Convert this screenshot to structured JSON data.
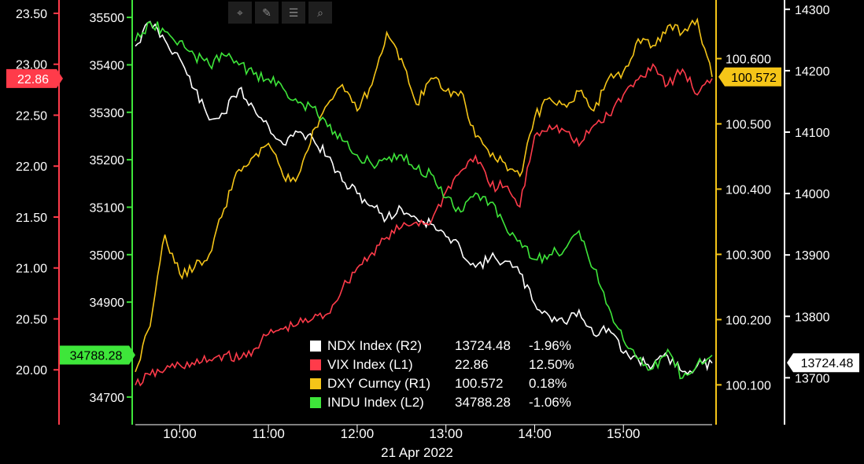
{
  "toolbar": {
    "icons": [
      "crosshair-icon",
      "pen-icon",
      "list-icon",
      "search-icon"
    ]
  },
  "legend": [
    {
      "name": "NDX Index (R2)",
      "last": "13724.48",
      "change": "-1.96%",
      "color": "#ffffff"
    },
    {
      "name": "VIX Index (L1)",
      "last": "22.86",
      "change": "12.50%",
      "color": "#ff3b4a"
    },
    {
      "name": "DXY Curncy (R1)",
      "last": "100.572",
      "change": "0.18%",
      "color": "#f5c518"
    },
    {
      "name": "INDU Index (L2)",
      "last": "34788.28",
      "change": "-1.06%",
      "color": "#3ee63a"
    }
  ],
  "chart_data": {
    "type": "line",
    "x_axis": {
      "ticks": [
        "10:00",
        "11:00",
        "12:00",
        "13:00",
        "14:00",
        "15:00"
      ],
      "date_label": "21 Apr 2022",
      "range": [
        "09:30",
        "16:00"
      ]
    },
    "axes": {
      "L1": {
        "color": "#ff3b4a",
        "range": [
          19.5,
          23.6
        ],
        "ticks": [
          "20.00",
          "20.50",
          "21.00",
          "21.50",
          "22.00",
          "22.50",
          "23.00",
          "23.50"
        ],
        "last_label": "22.86"
      },
      "L2": {
        "color": "#3ee63a",
        "range": [
          34650,
          35530
        ],
        "ticks": [
          "34700",
          "34800",
          "34900",
          "35000",
          "35100",
          "35200",
          "35300",
          "35400",
          "35500"
        ],
        "last_label": "34788.28"
      },
      "R1": {
        "color": "#f5c518",
        "range": [
          100.045,
          100.685
        ],
        "ticks": [
          "100.100",
          "100.200",
          "100.300",
          "100.400",
          "100.500",
          "100.600"
        ],
        "last_label": "100.572"
      },
      "R2": {
        "color": "#ffffff",
        "range": [
          13630,
          14310
        ],
        "ticks": [
          "13700",
          "13800",
          "13900",
          "14000",
          "14100",
          "14200",
          "14300"
        ],
        "last_label": "13724.48"
      }
    },
    "series": [
      {
        "name": "NDX Index (R2)",
        "axis": "R2",
        "color": "#ffffff",
        "x": [
          "09:30",
          "09:40",
          "09:50",
          "10:00",
          "10:10",
          "10:20",
          "10:30",
          "10:40",
          "10:50",
          "11:00",
          "11:10",
          "11:20",
          "11:30",
          "11:40",
          "11:50",
          "12:00",
          "12:10",
          "12:20",
          "12:30",
          "12:40",
          "12:50",
          "13:00",
          "13:10",
          "13:20",
          "13:30",
          "13:40",
          "13:50",
          "14:00",
          "14:10",
          "14:20",
          "14:30",
          "14:40",
          "14:50",
          "15:00",
          "15:10",
          "15:20",
          "15:30",
          "15:40",
          "15:50",
          "16:00"
        ],
        "values": [
          14240,
          14280,
          14250,
          14220,
          14170,
          14120,
          14130,
          14170,
          14140,
          14110,
          14080,
          14100,
          14090,
          14060,
          14020,
          14000,
          13980,
          13960,
          13975,
          13960,
          13950,
          13930,
          13910,
          13880,
          13895,
          13890,
          13870,
          13820,
          13800,
          13790,
          13810,
          13770,
          13780,
          13740,
          13730,
          13720,
          13735,
          13710,
          13720,
          13724
        ]
      },
      {
        "name": "VIX Index (L1)",
        "axis": "L1",
        "color": "#ff3b4a",
        "x": [
          "09:30",
          "09:40",
          "09:50",
          "10:00",
          "10:10",
          "10:20",
          "10:30",
          "10:40",
          "10:50",
          "11:00",
          "11:10",
          "11:20",
          "11:30",
          "11:40",
          "11:50",
          "12:00",
          "12:10",
          "12:20",
          "12:30",
          "12:40",
          "12:50",
          "13:00",
          "13:10",
          "13:20",
          "13:30",
          "13:40",
          "13:50",
          "14:00",
          "14:10",
          "14:20",
          "14:30",
          "14:40",
          "14:50",
          "15:00",
          "15:10",
          "15:20",
          "15:30",
          "15:40",
          "15:50",
          "16:00"
        ],
        "values": [
          19.85,
          19.95,
          20.0,
          20.05,
          20.05,
          20.1,
          20.15,
          20.1,
          20.2,
          20.35,
          20.4,
          20.45,
          20.5,
          20.55,
          20.8,
          21.0,
          21.15,
          21.3,
          21.4,
          21.45,
          21.45,
          21.75,
          21.95,
          22.1,
          21.8,
          21.8,
          21.6,
          22.3,
          22.4,
          22.35,
          22.2,
          22.4,
          22.5,
          22.7,
          22.85,
          23.0,
          22.8,
          22.95,
          22.7,
          22.86
        ]
      },
      {
        "name": "DXY Curncy (R1)",
        "axis": "R1",
        "color": "#f5c518",
        "x": [
          "09:30",
          "09:40",
          "09:50",
          "10:00",
          "10:10",
          "10:20",
          "10:30",
          "10:40",
          "10:50",
          "11:00",
          "11:10",
          "11:20",
          "11:30",
          "11:40",
          "11:50",
          "12:00",
          "12:10",
          "12:20",
          "12:30",
          "12:40",
          "12:50",
          "13:00",
          "13:10",
          "13:20",
          "13:30",
          "13:40",
          "13:50",
          "14:00",
          "14:10",
          "14:20",
          "14:30",
          "14:40",
          "14:50",
          "15:00",
          "15:10",
          "15:20",
          "15:30",
          "15:40",
          "15:50",
          "16:00"
        ],
        "values": [
          100.12,
          100.19,
          100.33,
          100.27,
          100.28,
          100.3,
          100.37,
          100.43,
          100.45,
          100.47,
          100.42,
          100.42,
          100.49,
          100.53,
          100.56,
          100.52,
          100.56,
          100.64,
          100.6,
          100.53,
          100.57,
          100.55,
          100.55,
          100.48,
          100.45,
          100.44,
          100.42,
          100.51,
          100.54,
          100.53,
          100.55,
          100.52,
          100.57,
          100.58,
          100.63,
          100.62,
          100.65,
          100.64,
          100.66,
          100.572
        ]
      },
      {
        "name": "INDU Index (L2)",
        "axis": "L2",
        "color": "#3ee63a",
        "x": [
          "09:30",
          "09:40",
          "09:50",
          "10:00",
          "10:10",
          "10:20",
          "10:30",
          "10:40",
          "10:50",
          "11:00",
          "11:10",
          "11:20",
          "11:30",
          "11:40",
          "11:50",
          "12:00",
          "12:10",
          "12:20",
          "12:30",
          "12:40",
          "12:50",
          "13:00",
          "13:10",
          "13:20",
          "13:30",
          "13:40",
          "13:50",
          "14:00",
          "14:10",
          "14:20",
          "14:30",
          "14:40",
          "14:50",
          "15:00",
          "15:10",
          "15:20",
          "15:30",
          "15:40",
          "15:50",
          "16:00"
        ],
        "values": [
          35450,
          35490,
          35470,
          35450,
          35420,
          35400,
          35420,
          35400,
          35380,
          35370,
          35350,
          35320,
          35310,
          35270,
          35240,
          35210,
          35190,
          35200,
          35210,
          35180,
          35170,
          35120,
          35090,
          35130,
          35110,
          35060,
          35030,
          34990,
          35000,
          35010,
          35050,
          34970,
          34890,
          34820,
          34780,
          34760,
          34800,
          34740,
          34770,
          34788
        ]
      }
    ]
  }
}
